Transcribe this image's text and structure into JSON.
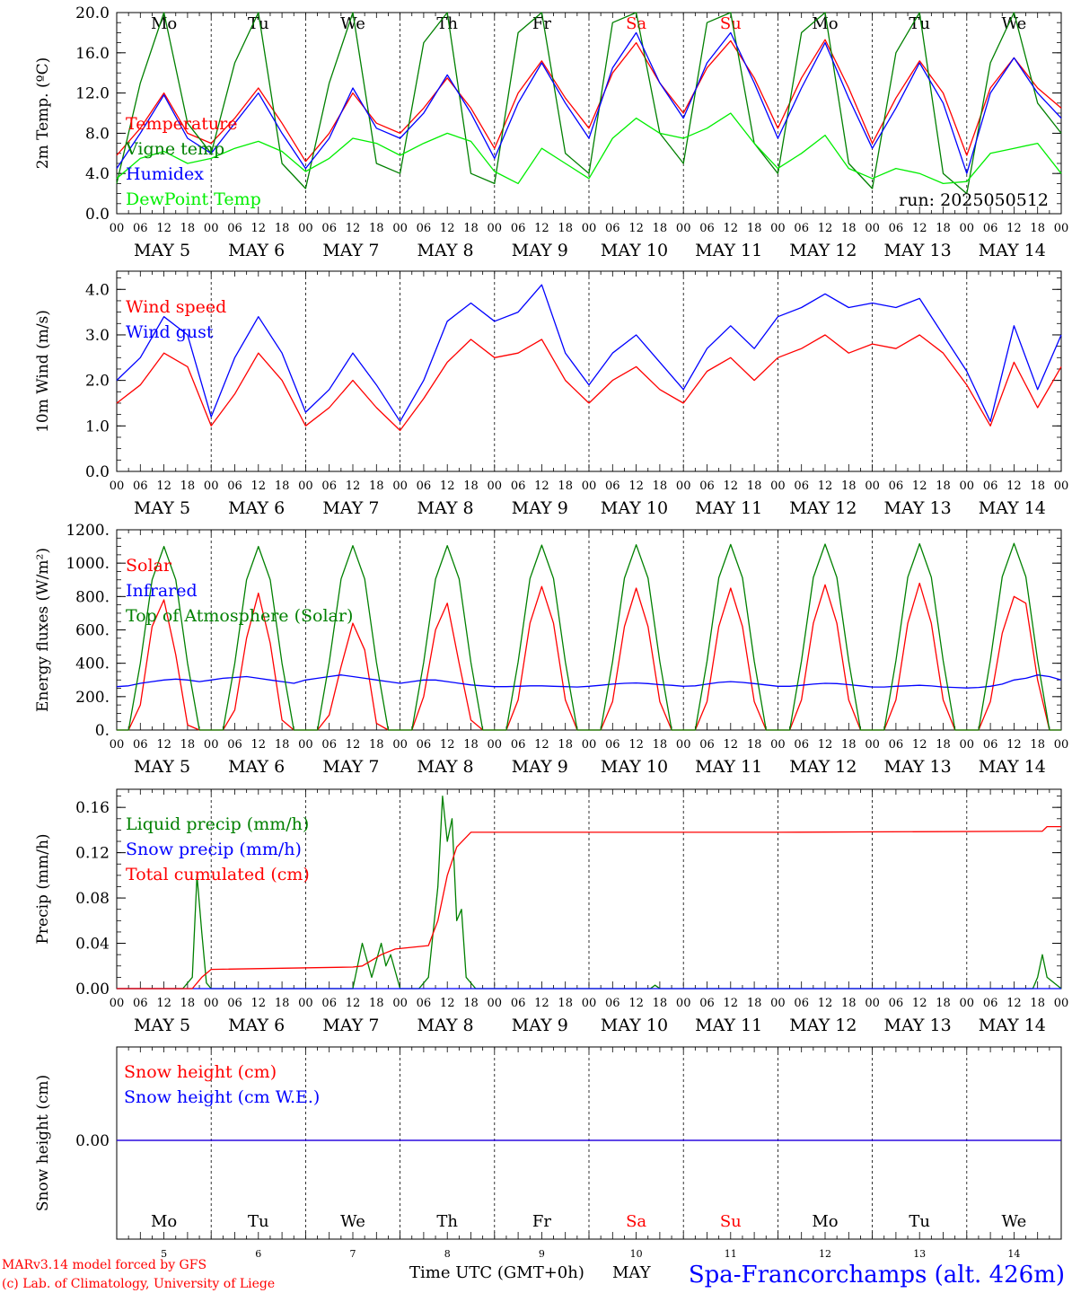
{
  "days": [
    "MAY 5",
    "MAY 6",
    "MAY 7",
    "MAY 8",
    "MAY 9",
    "MAY 10",
    "MAY 11",
    "MAY 12",
    "MAY 13",
    "MAY 14"
  ],
  "weekdays": [
    "Mo",
    "Tu",
    "We",
    "Th",
    "Fr",
    "Sa",
    "Su",
    "Mo",
    "Tu",
    "We"
  ],
  "weekend_color": "#ff0000",
  "hour_labels": [
    "00",
    "06",
    "12",
    "18"
  ],
  "last_hour_label": "00",
  "bottom_day_numbers": [
    "5",
    "6",
    "7",
    "8",
    "9",
    "10",
    "11",
    "12",
    "13",
    "14"
  ],
  "footer": {
    "model": "MARv3.14 model forced by GFS",
    "lab": "(c) Lab. of Climatology, University of Liege",
    "xaxis_label": "Time UTC (GMT+0h)",
    "month": "MAY",
    "station": "Spa-Francorchamps (alt. 426m)"
  },
  "chart_data": [
    {
      "type": "line",
      "ylabel": "2m Temp. (ºC)",
      "ylim": [
        0,
        20
      ],
      "yticks": [
        "0.0",
        "4.0",
        "8.0",
        "12.0",
        "16.0",
        "20.0"
      ],
      "annotation": "run: 2025050512",
      "x_days": [
        0,
        0.25,
        0.5,
        0.75,
        1,
        1.25,
        1.5,
        1.75,
        2,
        2.25,
        2.5,
        2.75,
        3,
        3.25,
        3.5,
        3.75,
        4,
        4.25,
        4.5,
        4.75,
        5,
        5.25,
        5.5,
        5.75,
        6,
        6.25,
        6.5,
        6.75,
        7,
        7.25,
        7.5,
        7.75,
        8,
        8.25,
        8.5,
        8.75,
        9,
        9.25,
        9.5,
        9.75,
        10
      ],
      "series": [
        {
          "name": "Temperature",
          "color": "#ff0000",
          "values": [
            5.8,
            8.5,
            12.0,
            8.0,
            7.0,
            9.5,
            12.5,
            9.0,
            5.2,
            8.0,
            12.0,
            9.0,
            8.0,
            10.5,
            13.5,
            10.5,
            6.5,
            12.0,
            15.2,
            11.5,
            8.5,
            14.0,
            17.0,
            13.0,
            10.0,
            14.5,
            17.2,
            13.5,
            8.5,
            13.5,
            17.3,
            12.5,
            7.0,
            11.5,
            15.2,
            12.0,
            5.8,
            12.5,
            15.5,
            12.5,
            10.5
          ]
        },
        {
          "name": "Vigne temp",
          "color": "#008000",
          "values": [
            3.0,
            13.0,
            20.5,
            9.0,
            6.0,
            15.0,
            20.5,
            5.0,
            2.5,
            13.0,
            20.5,
            5.0,
            4.0,
            17.0,
            20.5,
            4.0,
            3.0,
            18.0,
            20.5,
            6.0,
            4.0,
            19.0,
            20.5,
            8.0,
            5.0,
            19.0,
            20.5,
            7.0,
            4.0,
            18.0,
            20.5,
            5.0,
            2.5,
            16.0,
            20.5,
            4.0,
            2.0,
            15.0,
            20.5,
            11.0,
            8.0
          ]
        },
        {
          "name": "Humidex",
          "color": "#0000ff",
          "values": [
            4.5,
            8.0,
            11.8,
            7.5,
            6.0,
            9.0,
            12.0,
            8.0,
            4.5,
            7.5,
            12.5,
            8.5,
            7.5,
            10.0,
            13.8,
            10.0,
            5.5,
            11.0,
            15.0,
            11.0,
            7.5,
            14.5,
            18.0,
            13.0,
            9.5,
            15.0,
            18.0,
            13.0,
            7.5,
            12.5,
            17.0,
            11.5,
            6.5,
            10.5,
            15.0,
            11.0,
            4.0,
            12.0,
            15.5,
            12.0,
            9.5
          ]
        },
        {
          "name": "DewPoint Temp",
          "color": "#00ee00",
          "values": [
            3.5,
            5.5,
            6.2,
            5.0,
            5.5,
            6.5,
            7.2,
            6.2,
            4.2,
            5.5,
            7.5,
            7.0,
            5.8,
            7.0,
            8.0,
            7.2,
            4.2,
            3.0,
            6.5,
            5.0,
            3.5,
            7.5,
            9.5,
            8.0,
            7.5,
            8.5,
            10.0,
            7.0,
            4.5,
            6.0,
            7.8,
            4.5,
            3.5,
            4.5,
            4.0,
            3.0,
            3.2,
            6.0,
            6.5,
            7.0,
            4.0
          ]
        }
      ]
    },
    {
      "type": "line",
      "ylabel": "10m Wind (m/s)",
      "ylim": [
        0,
        4.4
      ],
      "yticks": [
        "0.0",
        "1.0",
        "2.0",
        "3.0",
        "4.0"
      ],
      "x_days": [
        0,
        0.25,
        0.5,
        0.75,
        1,
        1.25,
        1.5,
        1.75,
        2,
        2.25,
        2.5,
        2.75,
        3,
        3.25,
        3.5,
        3.75,
        4,
        4.25,
        4.5,
        4.75,
        5,
        5.25,
        5.5,
        5.75,
        6,
        6.25,
        6.5,
        6.75,
        7,
        7.25,
        7.5,
        7.75,
        8,
        8.25,
        8.5,
        8.75,
        9,
        9.25,
        9.5,
        9.75,
        10
      ],
      "series": [
        {
          "name": "Wind speed",
          "color": "#ff0000",
          "values": [
            1.5,
            1.9,
            2.6,
            2.3,
            1.0,
            1.7,
            2.6,
            2.0,
            1.0,
            1.4,
            2.0,
            1.4,
            0.9,
            1.6,
            2.4,
            2.9,
            2.5,
            2.6,
            2.9,
            2.0,
            1.5,
            2.0,
            2.3,
            1.8,
            1.5,
            2.2,
            2.5,
            2.0,
            2.5,
            2.7,
            3.0,
            2.6,
            2.8,
            2.7,
            3.0,
            2.6,
            1.9,
            1.0,
            2.4,
            1.4,
            2.3
          ]
        },
        {
          "name": "Wind gust",
          "color": "#0000ff",
          "values": [
            2.0,
            2.5,
            3.4,
            3.0,
            1.2,
            2.5,
            3.4,
            2.6,
            1.3,
            1.8,
            2.6,
            1.9,
            1.1,
            2.0,
            3.3,
            3.7,
            3.3,
            3.5,
            4.1,
            2.6,
            1.9,
            2.6,
            3.0,
            2.4,
            1.8,
            2.7,
            3.2,
            2.7,
            3.4,
            3.6,
            3.9,
            3.6,
            3.7,
            3.6,
            3.8,
            3.0,
            2.2,
            1.1,
            3.2,
            1.8,
            3.0
          ]
        }
      ]
    },
    {
      "type": "line",
      "ylabel": "Energy fluxes (W/m²)",
      "ylim": [
        0,
        1200
      ],
      "yticks": [
        "0.",
        "200.",
        "400.",
        "600.",
        "800.",
        "1000.",
        "1200."
      ],
      "x_days": [
        0,
        0.125,
        0.25,
        0.375,
        0.5,
        0.625,
        0.75,
        0.875,
        1,
        1.125,
        1.25,
        1.375,
        1.5,
        1.625,
        1.75,
        1.875,
        2,
        2.125,
        2.25,
        2.375,
        2.5,
        2.625,
        2.75,
        2.875,
        3,
        3.125,
        3.25,
        3.375,
        3.5,
        3.625,
        3.75,
        3.875,
        4,
        4.125,
        4.25,
        4.375,
        4.5,
        4.625,
        4.75,
        4.875,
        5,
        5.125,
        5.25,
        5.375,
        5.5,
        5.625,
        5.75,
        5.875,
        6,
        6.125,
        6.25,
        6.375,
        6.5,
        6.625,
        6.75,
        6.875,
        7,
        7.125,
        7.25,
        7.375,
        7.5,
        7.625,
        7.75,
        7.875,
        8,
        8.125,
        8.25,
        8.375,
        8.5,
        8.625,
        8.75,
        8.875,
        9,
        9.125,
        9.25,
        9.375,
        9.5,
        9.625,
        9.75,
        9.875,
        10
      ],
      "series": [
        {
          "name": "Solar",
          "color": "#ff0000",
          "values": [
            0,
            0,
            150,
            620,
            780,
            450,
            30,
            0,
            0,
            0,
            120,
            550,
            820,
            520,
            60,
            0,
            0,
            0,
            90,
            380,
            640,
            480,
            40,
            0,
            0,
            0,
            200,
            600,
            760,
            400,
            60,
            0,
            0,
            0,
            180,
            640,
            860,
            640,
            180,
            0,
            0,
            0,
            170,
            620,
            850,
            620,
            170,
            0,
            0,
            0,
            170,
            620,
            850,
            620,
            170,
            0,
            0,
            0,
            180,
            640,
            870,
            640,
            180,
            0,
            0,
            0,
            180,
            640,
            880,
            640,
            180,
            0,
            0,
            0,
            170,
            580,
            800,
            760,
            300,
            0,
            0
          ]
        },
        {
          "name": "Infrared",
          "color": "#0000ff",
          "values": [
            260,
            265,
            280,
            290,
            300,
            305,
            300,
            290,
            300,
            310,
            315,
            320,
            310,
            300,
            290,
            280,
            300,
            310,
            320,
            330,
            320,
            310,
            300,
            290,
            280,
            290,
            300,
            300,
            290,
            280,
            270,
            265,
            260,
            260,
            262,
            265,
            265,
            262,
            260,
            258,
            262,
            268,
            275,
            280,
            282,
            278,
            272,
            268,
            262,
            265,
            275,
            285,
            290,
            285,
            278,
            270,
            262,
            262,
            268,
            275,
            280,
            278,
            272,
            265,
            258,
            258,
            262,
            265,
            268,
            264,
            258,
            255,
            252,
            255,
            262,
            275,
            300,
            310,
            330,
            320,
            300
          ]
        },
        {
          "name": "Top of Atmosphere (Solar)",
          "color": "#008000",
          "values": [
            0,
            0,
            400,
            900,
            1100,
            900,
            400,
            0,
            0,
            0,
            400,
            900,
            1100,
            900,
            400,
            0,
            0,
            0,
            405,
            905,
            1105,
            905,
            405,
            0,
            0,
            0,
            405,
            905,
            1105,
            905,
            405,
            0,
            0,
            0,
            408,
            908,
            1108,
            908,
            408,
            0,
            0,
            0,
            410,
            910,
            1110,
            910,
            410,
            0,
            0,
            0,
            412,
            912,
            1112,
            912,
            412,
            0,
            0,
            0,
            414,
            914,
            1114,
            914,
            414,
            0,
            0,
            0,
            416,
            916,
            1116,
            916,
            416,
            0,
            0,
            0,
            418,
            918,
            1118,
            918,
            418,
            0,
            0
          ]
        }
      ]
    },
    {
      "type": "line",
      "ylabel": "Precip (mm/h)",
      "ylim": [
        0,
        0.176
      ],
      "yticks": [
        "0.00",
        "0.04",
        "0.08",
        "0.12",
        "0.16"
      ],
      "series": [
        {
          "name": "Liquid precip (mm/h)",
          "color": "#008000",
          "x": [
            0,
            0.7,
            0.8,
            0.85,
            0.9,
            0.95,
            1.0,
            2.5,
            2.6,
            2.7,
            2.8,
            2.85,
            2.9,
            3.0,
            3.2,
            3.3,
            3.4,
            3.45,
            3.5,
            3.55,
            3.6,
            3.65,
            3.7,
            3.8,
            5.65,
            5.7,
            5.75,
            9.7,
            9.75,
            9.8,
            9.85,
            10
          ],
          "values": [
            0,
            0,
            0.01,
            0.1,
            0.05,
            0.005,
            0,
            0,
            0.04,
            0.01,
            0.04,
            0.02,
            0.03,
            0,
            0,
            0.01,
            0.09,
            0.17,
            0.13,
            0.15,
            0.06,
            0.07,
            0.01,
            0,
            0,
            0.003,
            0,
            0,
            0.01,
            0.03,
            0.01,
            0
          ]
        },
        {
          "name": "Snow precip (mm/h)",
          "color": "#0000ff",
          "x": [
            0,
            10
          ],
          "values": [
            0,
            0
          ]
        },
        {
          "name": "Total cumulated (cm)",
          "color": "#ff0000",
          "x": [
            0,
            0.8,
            0.9,
            1.0,
            2.5,
            2.6,
            2.8,
            2.95,
            3.3,
            3.4,
            3.5,
            3.6,
            3.75,
            3.8,
            7.0,
            9.8,
            9.85,
            10
          ],
          "values": [
            0,
            0,
            0.01,
            0.017,
            0.019,
            0.02,
            0.03,
            0.035,
            0.038,
            0.06,
            0.1,
            0.125,
            0.138,
            0.138,
            0.138,
            0.139,
            0.143,
            0.143
          ]
        }
      ]
    },
    {
      "type": "line",
      "ylabel": "Snow height (cm)",
      "yticks": [
        "0.00"
      ],
      "series": [
        {
          "name": "Snow height (cm)",
          "color": "#ff0000",
          "x": [
            0,
            10
          ],
          "values": [
            0,
            0
          ]
        },
        {
          "name": "Snow height (cm W.E.)",
          "color": "#0000ff",
          "x": [
            0,
            10
          ],
          "values": [
            0,
            0
          ]
        }
      ]
    }
  ]
}
